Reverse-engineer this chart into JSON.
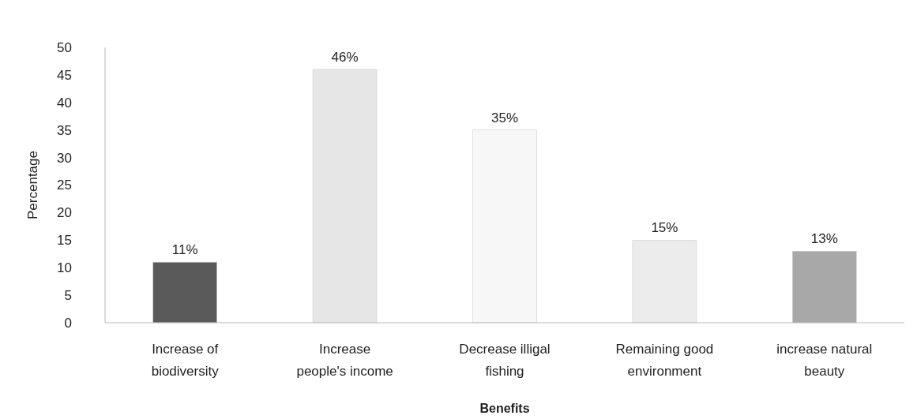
{
  "chart_data": {
    "type": "bar",
    "xlabel": "Benefits",
    "ylabel": "Percentage",
    "categories": [
      "Increase of biodiversity",
      "Increase people's income",
      "Decrease illigal fishing",
      "Remaining good environment",
      "increase natural beauty"
    ],
    "values": [
      11,
      46,
      35,
      15,
      13
    ],
    "colors": [
      "#5a5a5a",
      "#e6e6e6",
      "#f7f7f7",
      "#ececec",
      "#a8a8a8"
    ],
    "value_labels": [
      "11%",
      "46%",
      "35%",
      "15%",
      "13%"
    ],
    "ylim": [
      0,
      50
    ],
    "yticks": [
      0,
      5,
      10,
      15,
      20,
      25,
      30,
      35,
      40,
      45,
      50
    ],
    "grid": false
  }
}
